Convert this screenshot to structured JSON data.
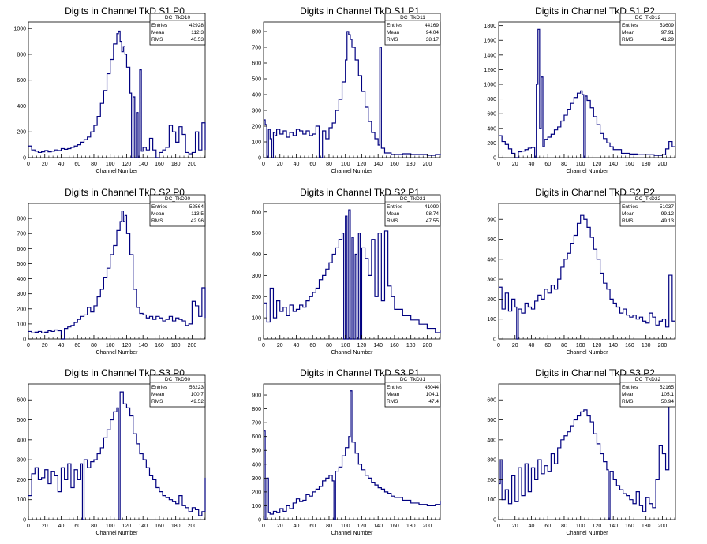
{
  "colors": {
    "line": "#000080",
    "axis": "#000000",
    "background": "#ffffff"
  },
  "common_xlabel": "Channel Number",
  "chart_data": [
    {
      "type": "line",
      "title": "Digits in Channel TkD S1 P0",
      "xlabel": "Channel Number",
      "ylabel": "",
      "stats": {
        "name": "DC_TkD10",
        "entries": "42928",
        "mean": "112.3",
        "rms": "40.53"
      },
      "xlim": [
        0,
        216
      ],
      "ylim": [
        0,
        1050
      ],
      "xticks": [
        0,
        20,
        40,
        60,
        80,
        100,
        120,
        140,
        160,
        180,
        200
      ],
      "yticks": [
        0,
        200,
        400,
        600,
        800,
        1000
      ],
      "x": [
        0,
        4,
        8,
        12,
        16,
        20,
        24,
        28,
        32,
        36,
        40,
        44,
        48,
        52,
        56,
        60,
        64,
        68,
        72,
        76,
        80,
        84,
        88,
        92,
        96,
        100,
        104,
        108,
        110,
        112,
        114,
        116,
        118,
        120,
        124,
        126,
        128,
        130,
        132,
        134,
        136,
        138,
        140,
        144,
        148,
        152,
        156,
        160,
        164,
        168,
        172,
        176,
        180,
        184,
        188,
        192,
        196,
        200,
        204,
        208,
        212,
        216
      ],
      "y": [
        90,
        60,
        50,
        40,
        45,
        55,
        45,
        50,
        60,
        55,
        70,
        65,
        70,
        80,
        90,
        100,
        120,
        140,
        160,
        200,
        250,
        320,
        420,
        520,
        650,
        760,
        880,
        960,
        980,
        900,
        820,
        860,
        800,
        700,
        500,
        0,
        470,
        0,
        350,
        0,
        680,
        50,
        80,
        60,
        150,
        60,
        0,
        40,
        60,
        80,
        250,
        200,
        120,
        240,
        180,
        40,
        30,
        40,
        200,
        60,
        270,
        60
      ]
    },
    {
      "type": "line",
      "title": "Digits in Channel TkD S1 P1",
      "xlabel": "Channel Number",
      "ylabel": "",
      "stats": {
        "name": "DC_TkD11",
        "entries": "44169",
        "mean": "94.04",
        "rms": "38.17"
      },
      "xlim": [
        0,
        216
      ],
      "ylim": [
        0,
        860
      ],
      "xticks": [
        0,
        20,
        40,
        60,
        80,
        100,
        120,
        140,
        160,
        180,
        200
      ],
      "yticks": [
        0,
        100,
        200,
        300,
        400,
        500,
        600,
        700,
        800
      ],
      "x": [
        0,
        2,
        4,
        6,
        8,
        10,
        12,
        14,
        16,
        20,
        24,
        28,
        32,
        36,
        40,
        44,
        48,
        52,
        56,
        60,
        64,
        68,
        72,
        76,
        80,
        84,
        88,
        92,
        96,
        100,
        102,
        104,
        106,
        108,
        112,
        116,
        120,
        124,
        128,
        132,
        136,
        140,
        142,
        144,
        148,
        152,
        156,
        160,
        170,
        180,
        190,
        200,
        210,
        216
      ],
      "y": [
        240,
        210,
        0,
        180,
        120,
        0,
        160,
        140,
        180,
        150,
        170,
        130,
        160,
        140,
        180,
        170,
        150,
        170,
        140,
        150,
        200,
        0,
        170,
        120,
        190,
        220,
        300,
        370,
        480,
        620,
        800,
        780,
        750,
        700,
        620,
        520,
        420,
        320,
        230,
        160,
        120,
        80,
        700,
        60,
        30,
        30,
        20,
        20,
        25,
        20,
        20,
        15,
        20,
        25
      ]
    },
    {
      "type": "line",
      "title": "Digits in Channel TkD S1 P2",
      "xlabel": "Channel Number",
      "ylabel": "",
      "stats": {
        "name": "DC_TkD12",
        "entries": "53609",
        "mean": "97.91",
        "rms": "41.29"
      },
      "xlim": [
        0,
        216
      ],
      "ylim": [
        0,
        1850
      ],
      "xticks": [
        0,
        20,
        40,
        60,
        80,
        100,
        120,
        140,
        160,
        180,
        200
      ],
      "yticks": [
        0,
        200,
        400,
        600,
        800,
        1000,
        1200,
        1400,
        1600,
        1800
      ],
      "x": [
        0,
        4,
        8,
        12,
        16,
        20,
        24,
        28,
        32,
        36,
        40,
        44,
        46,
        48,
        50,
        52,
        54,
        56,
        60,
        64,
        68,
        72,
        76,
        80,
        84,
        88,
        92,
        96,
        100,
        102,
        104,
        106,
        108,
        112,
        116,
        120,
        124,
        128,
        132,
        136,
        140,
        150,
        160,
        170,
        180,
        190,
        200,
        204,
        208,
        212
      ],
      "y": [
        300,
        220,
        180,
        120,
        60,
        0,
        80,
        90,
        110,
        130,
        140,
        0,
        1000,
        1750,
        400,
        1100,
        150,
        250,
        280,
        320,
        380,
        420,
        500,
        580,
        660,
        740,
        820,
        880,
        910,
        860,
        0,
        840,
        780,
        680,
        560,
        450,
        330,
        260,
        200,
        150,
        110,
        60,
        50,
        40,
        40,
        30,
        40,
        120,
        220,
        150
      ]
    },
    {
      "type": "line",
      "title": "Digits in Channel TkD S2 P0",
      "xlabel": "Channel Number",
      "ylabel": "",
      "stats": {
        "name": "DC_TkD20",
        "entries": "52564",
        "mean": "113.5",
        "rms": "42.96"
      },
      "xlim": [
        0,
        216
      ],
      "ylim": [
        0,
        900
      ],
      "xticks": [
        0,
        20,
        40,
        60,
        80,
        100,
        120,
        140,
        160,
        180,
        200
      ],
      "yticks": [
        0,
        100,
        200,
        300,
        400,
        500,
        600,
        700,
        800
      ],
      "x": [
        0,
        4,
        8,
        12,
        16,
        20,
        24,
        28,
        32,
        36,
        40,
        44,
        48,
        52,
        56,
        60,
        64,
        68,
        72,
        76,
        80,
        84,
        88,
        92,
        96,
        100,
        104,
        108,
        112,
        114,
        116,
        118,
        120,
        124,
        128,
        132,
        136,
        140,
        144,
        148,
        152,
        156,
        160,
        164,
        168,
        172,
        176,
        180,
        184,
        188,
        192,
        196,
        200,
        204,
        208,
        212,
        216
      ],
      "y": [
        50,
        40,
        45,
        50,
        40,
        45,
        55,
        50,
        60,
        55,
        0,
        70,
        80,
        90,
        110,
        130,
        150,
        160,
        210,
        180,
        220,
        280,
        330,
        410,
        470,
        560,
        620,
        720,
        780,
        850,
        780,
        820,
        700,
        560,
        330,
        210,
        170,
        160,
        140,
        150,
        130,
        150,
        140,
        120,
        130,
        150,
        120,
        140,
        130,
        120,
        90,
        100,
        250,
        220,
        150,
        340,
        140
      ]
    },
    {
      "type": "line",
      "title": "Digits in Channel TkD S2 P1",
      "xlabel": "Channel Number",
      "ylabel": "",
      "stats": {
        "name": "DC_TkD21",
        "entries": "41090",
        "mean": "98.74",
        "rms": "47.55"
      },
      "xlim": [
        0,
        216
      ],
      "ylim": [
        0,
        640
      ],
      "xticks": [
        0,
        20,
        40,
        60,
        80,
        100,
        120,
        140,
        160,
        180,
        200
      ],
      "yticks": [
        0,
        100,
        200,
        300,
        400,
        500,
        600
      ],
      "x": [
        0,
        4,
        8,
        12,
        16,
        20,
        24,
        28,
        32,
        36,
        40,
        44,
        48,
        52,
        56,
        60,
        64,
        68,
        72,
        76,
        80,
        84,
        88,
        92,
        96,
        98,
        100,
        102,
        104,
        106,
        108,
        110,
        112,
        114,
        116,
        118,
        120,
        124,
        128,
        132,
        136,
        140,
        144,
        148,
        152,
        156,
        160,
        170,
        180,
        190,
        200,
        210,
        216
      ],
      "y": [
        170,
        80,
        240,
        100,
        180,
        130,
        150,
        110,
        160,
        130,
        140,
        160,
        150,
        180,
        200,
        220,
        240,
        280,
        300,
        330,
        360,
        400,
        430,
        470,
        500,
        0,
        580,
        0,
        610,
        0,
        480,
        0,
        400,
        0,
        500,
        0,
        430,
        380,
        300,
        470,
        200,
        500,
        180,
        510,
        250,
        200,
        140,
        110,
        90,
        70,
        50,
        30,
        40
      ]
    },
    {
      "type": "line",
      "title": "Digits in Channel TkD S2 P2",
      "xlabel": "Channel Number",
      "ylabel": "",
      "stats": {
        "name": "DC_TkD22",
        "entries": "51037",
        "mean": "99.12",
        "rms": "49.13"
      },
      "xlim": [
        0,
        216
      ],
      "ylim": [
        0,
        680
      ],
      "xticks": [
        0,
        20,
        40,
        60,
        80,
        100,
        120,
        140,
        160,
        180,
        200
      ],
      "yticks": [
        0,
        100,
        200,
        300,
        400,
        500,
        600
      ],
      "x": [
        0,
        4,
        8,
        12,
        16,
        20,
        22,
        24,
        28,
        32,
        36,
        40,
        44,
        48,
        52,
        56,
        60,
        64,
        68,
        72,
        76,
        80,
        84,
        88,
        92,
        96,
        100,
        104,
        108,
        112,
        116,
        120,
        124,
        128,
        132,
        136,
        140,
        144,
        148,
        152,
        156,
        160,
        164,
        168,
        172,
        176,
        180,
        184,
        188,
        192,
        196,
        200,
        204,
        208,
        212
      ],
      "y": [
        260,
        150,
        230,
        140,
        200,
        160,
        0,
        150,
        130,
        180,
        160,
        150,
        190,
        220,
        200,
        250,
        230,
        270,
        250,
        300,
        360,
        400,
        430,
        480,
        520,
        580,
        620,
        600,
        560,
        510,
        450,
        400,
        330,
        280,
        250,
        200,
        180,
        160,
        130,
        150,
        120,
        110,
        120,
        100,
        110,
        90,
        80,
        130,
        110,
        70,
        90,
        100,
        60,
        320,
        90
      ]
    },
    {
      "type": "line",
      "title": "Digits in Channel TkD S3 P0",
      "xlabel": "Channel Number",
      "ylabel": "",
      "stats": {
        "name": "DC_TkD30",
        "entries": "56223",
        "mean": "100.7",
        "rms": "49.52"
      },
      "xlim": [
        0,
        216
      ],
      "ylim": [
        0,
        680
      ],
      "xticks": [
        0,
        20,
        40,
        60,
        80,
        100,
        120,
        140,
        160,
        180,
        200
      ],
      "yticks": [
        0,
        100,
        200,
        300,
        400,
        500,
        600
      ],
      "x": [
        0,
        4,
        8,
        12,
        16,
        20,
        24,
        28,
        32,
        36,
        40,
        44,
        48,
        52,
        56,
        60,
        64,
        66,
        68,
        72,
        76,
        80,
        84,
        88,
        92,
        96,
        100,
        104,
        108,
        110,
        112,
        116,
        120,
        124,
        128,
        132,
        136,
        140,
        144,
        148,
        152,
        156,
        160,
        164,
        168,
        172,
        176,
        180,
        184,
        188,
        192,
        196,
        200,
        204,
        208,
        212,
        216
      ],
      "y": [
        120,
        230,
        260,
        200,
        210,
        250,
        180,
        240,
        220,
        140,
        260,
        200,
        280,
        160,
        250,
        200,
        280,
        0,
        300,
        260,
        290,
        300,
        330,
        360,
        410,
        450,
        500,
        540,
        560,
        0,
        640,
        580,
        560,
        520,
        430,
        380,
        330,
        300,
        260,
        220,
        200,
        160,
        140,
        120,
        110,
        100,
        90,
        80,
        120,
        70,
        60,
        40,
        60,
        50,
        20,
        40,
        210
      ]
    },
    {
      "type": "line",
      "title": "Digits in Channel TkD S3 P1",
      "xlabel": "Channel Number",
      "ylabel": "",
      "stats": {
        "name": "DC_TkD31",
        "entries": "45044",
        "mean": "104.1",
        "rms": "47.4"
      },
      "xlim": [
        0,
        216
      ],
      "ylim": [
        0,
        980
      ],
      "xticks": [
        0,
        20,
        40,
        60,
        80,
        100,
        120,
        140,
        160,
        180,
        200
      ],
      "yticks": [
        0,
        100,
        200,
        300,
        400,
        500,
        600,
        700,
        800,
        900
      ],
      "x": [
        0,
        2,
        4,
        6,
        8,
        12,
        16,
        20,
        24,
        28,
        32,
        36,
        40,
        44,
        48,
        52,
        56,
        60,
        64,
        68,
        72,
        76,
        80,
        84,
        86,
        88,
        92,
        96,
        100,
        104,
        106,
        108,
        112,
        116,
        120,
        124,
        128,
        132,
        136,
        140,
        144,
        148,
        152,
        156,
        160,
        170,
        180,
        190,
        200,
        210,
        216
      ],
      "y": [
        640,
        0,
        300,
        50,
        40,
        60,
        50,
        80,
        60,
        100,
        80,
        120,
        150,
        130,
        140,
        180,
        170,
        200,
        220,
        240,
        280,
        300,
        320,
        280,
        0,
        350,
        380,
        460,
        520,
        600,
        930,
        560,
        480,
        400,
        360,
        320,
        300,
        270,
        250,
        230,
        220,
        200,
        190,
        170,
        160,
        140,
        120,
        110,
        100,
        110,
        130
      ]
    },
    {
      "type": "line",
      "title": "Digits in Channel TkD S3 P2",
      "xlabel": "Channel Number",
      "ylabel": "",
      "stats": {
        "name": "DC_TkD32",
        "entries": "52165",
        "mean": "105.1",
        "rms": "50.94"
      },
      "xlim": [
        0,
        216
      ],
      "ylim": [
        0,
        680
      ],
      "xticks": [
        0,
        20,
        40,
        60,
        80,
        100,
        120,
        140,
        160,
        180,
        200
      ],
      "yticks": [
        0,
        100,
        200,
        300,
        400,
        500,
        600
      ],
      "x": [
        0,
        2,
        4,
        8,
        12,
        16,
        20,
        24,
        28,
        32,
        36,
        40,
        44,
        48,
        52,
        56,
        60,
        64,
        68,
        72,
        76,
        80,
        84,
        88,
        92,
        96,
        100,
        104,
        108,
        112,
        116,
        120,
        124,
        128,
        132,
        134,
        136,
        140,
        144,
        148,
        152,
        156,
        160,
        164,
        168,
        172,
        176,
        180,
        184,
        188,
        192,
        196,
        200,
        204,
        208,
        212
      ],
      "y": [
        180,
        300,
        100,
        150,
        80,
        220,
        90,
        260,
        120,
        280,
        140,
        260,
        200,
        300,
        230,
        270,
        240,
        330,
        280,
        360,
        400,
        420,
        440,
        470,
        500,
        520,
        540,
        550,
        520,
        490,
        430,
        380,
        330,
        290,
        250,
        0,
        240,
        200,
        170,
        150,
        130,
        120,
        100,
        80,
        140,
        70,
        40,
        110,
        80,
        60,
        200,
        370,
        330,
        250,
        590,
        640
      ]
    }
  ]
}
